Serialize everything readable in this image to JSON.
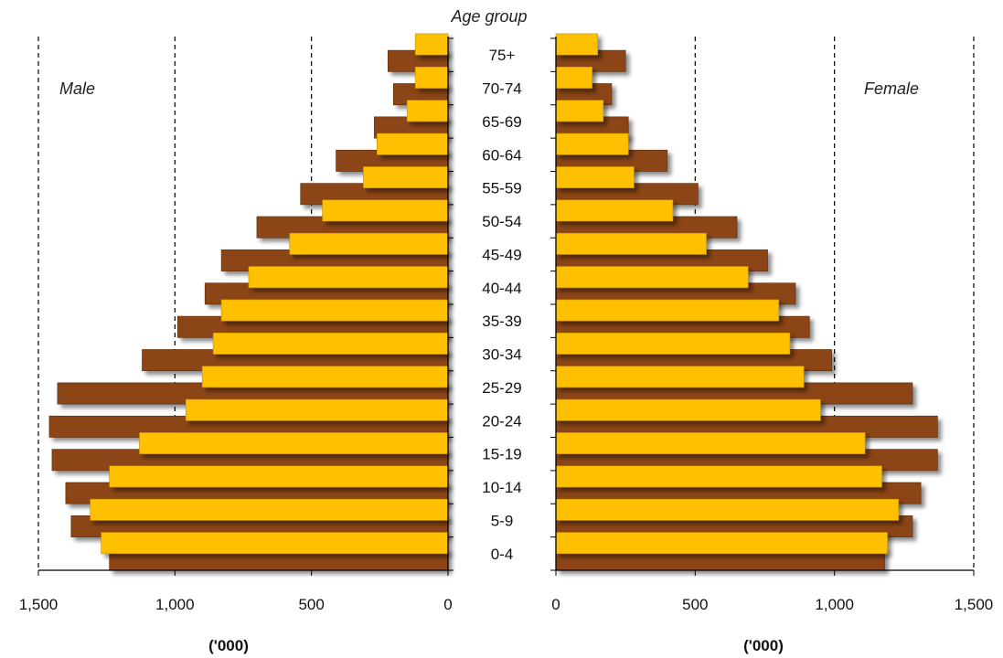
{
  "chart_data": {
    "type": "bar",
    "orientation": "horizontal",
    "subtype": "population pyramid",
    "title": "Age group",
    "categories": [
      "0-4",
      "5-9",
      "10-14",
      "15-19",
      "20-24",
      "25-29",
      "30-34",
      "35-39",
      "40-44",
      "45-49",
      "50-54",
      "55-59",
      "60-64",
      "65-69",
      "70-74",
      "75+"
    ],
    "xlabel_left": "('000)",
    "xlabel_right": "('000)",
    "xlim": [
      0,
      1500
    ],
    "x_ticks": [
      "1,500",
      "1,000",
      "500",
      "0"
    ],
    "x_ticks_right": [
      "0",
      "500",
      "1,000",
      "1,500"
    ],
    "panels": [
      {
        "label": "Male",
        "series": [
          {
            "color": "#8b4513",
            "values": [
              1240,
              1380,
              1400,
              1450,
              1460,
              1430,
              1120,
              990,
              890,
              830,
              700,
              540,
              410,
              270,
              200,
              220
            ]
          },
          {
            "color": "#ffc000",
            "values": [
              1270,
              1310,
              1240,
              1130,
              960,
              900,
              860,
              830,
              730,
              580,
              460,
              310,
              260,
              150,
              120,
              120
            ]
          }
        ]
      },
      {
        "label": "Female",
        "series": [
          {
            "color": "#8b4513",
            "values": [
              1180,
              1280,
              1310,
              1370,
              1370,
              1280,
              990,
              910,
              860,
              760,
              650,
              510,
              400,
              260,
              200,
              250
            ]
          },
          {
            "color": "#ffc000",
            "values": [
              1190,
              1230,
              1170,
              1110,
              950,
              890,
              840,
              800,
              690,
              540,
              420,
              280,
              260,
              170,
              130,
              150
            ]
          }
        ]
      }
    ],
    "gridlines": "vertical dashed at 500, 1000, 1500",
    "legend": "none"
  },
  "colors": {
    "male_total": "#8b4513",
    "female_part": "#ffc000",
    "axis": "#000000"
  }
}
